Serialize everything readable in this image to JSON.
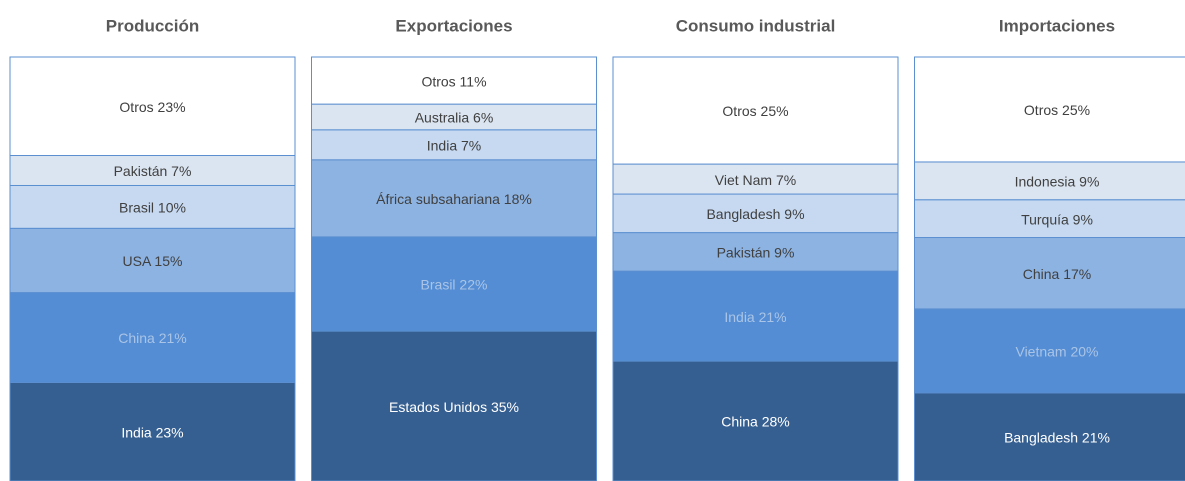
{
  "chart_data": [
    {
      "type": "stacked100",
      "title": "Producción",
      "values": [
        23,
        21,
        15,
        10,
        7,
        23
      ],
      "value_labels": [
        "India 23%",
        "China 21%",
        "USA 15%",
        "Brasil 10%",
        "Pakistán 7%",
        "Otros 23%"
      ],
      "colors": [
        "#365f91",
        "#548dd4",
        "#8db3e2",
        "#c6d9f1",
        "#dbe5f1",
        "#ffffff"
      ]
    },
    {
      "type": "stacked100",
      "title": "Exportaciones",
      "values": [
        35,
        22,
        18,
        7,
        6,
        11
      ],
      "value_labels": [
        "Estados Unidos 35%",
        "Brasil 22%",
        "África subsahariana 18%",
        "India 7%",
        "Australia 6%",
        "Otros 11%"
      ],
      "colors": [
        "#365f91",
        "#548dd4",
        "#8db3e2",
        "#c6d9f1",
        "#dbe5f1",
        "#ffffff"
      ]
    },
    {
      "type": "stacked100",
      "title": "Consumo industrial",
      "values": [
        28,
        21,
        9,
        9,
        7,
        25
      ],
      "value_labels": [
        "China 28%",
        "India 21%",
        "Pakistán 9%",
        "Bangladesh 9%",
        "Viet Nam 7%",
        "Otros 25%"
      ],
      "colors": [
        "#365f91",
        "#548dd4",
        "#8db3e2",
        "#c6d9f1",
        "#dbe5f1",
        "#ffffff"
      ]
    },
    {
      "type": "stacked100",
      "title": "Importaciones",
      "values": [
        21,
        20,
        17,
        9,
        9,
        25
      ],
      "value_labels": [
        "Bangladesh 21%",
        "Vietnam 20%",
        "China 17%",
        "Turquía 9%",
        "Indonesia 9%",
        "Otros 25%"
      ],
      "colors": [
        "#365f91",
        "#548dd4",
        "#8db3e2",
        "#c6d9f1",
        "#dbe5f1",
        "#ffffff"
      ]
    }
  ]
}
